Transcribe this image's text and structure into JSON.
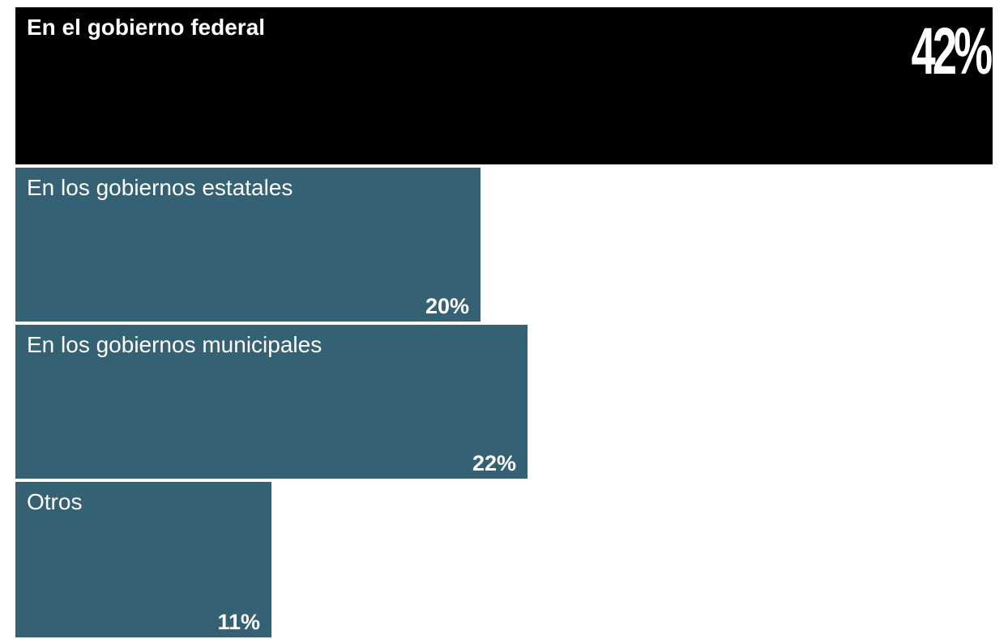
{
  "chart_data": {
    "type": "bar",
    "orientation": "horizontal",
    "categories": [
      "En el gobierno federal",
      "En los gobiernos estatales",
      "En los gobiernos municipales",
      "Otros"
    ],
    "values": [
      42,
      20,
      22,
      11
    ],
    "value_labels": [
      "42%",
      "20%",
      "22%",
      "11%"
    ],
    "unit": "%",
    "highlight_index": 0,
    "xlim": [
      0,
      42
    ],
    "grid": false,
    "legend": "none",
    "colors": {
      "highlight": "#000000",
      "default": "#356174",
      "text": "#ffffff"
    }
  }
}
